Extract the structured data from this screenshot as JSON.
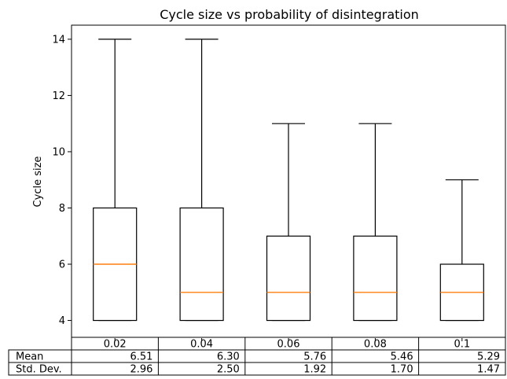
{
  "chart_data": {
    "type": "box",
    "title": "Cycle size vs probability of disintegration",
    "ylabel": "Cycle size",
    "xlabel": "",
    "ylim": [
      3.4,
      14.5
    ],
    "yticks": [
      4,
      6,
      8,
      10,
      12,
      14
    ],
    "grid": false,
    "categories": [
      "0.02",
      "0.04",
      "0.06",
      "0.08",
      "0.1"
    ],
    "boxes": [
      {
        "whislo": 4,
        "q1": 4,
        "median": 6,
        "q3": 8,
        "whishi": 14
      },
      {
        "whislo": 4,
        "q1": 4,
        "median": 5,
        "q3": 8,
        "whishi": 14
      },
      {
        "whislo": 4,
        "q1": 4,
        "median": 5,
        "q3": 7,
        "whishi": 11
      },
      {
        "whislo": 4,
        "q1": 4,
        "median": 5,
        "q3": 7,
        "whishi": 11
      },
      {
        "whislo": 4,
        "q1": 4,
        "median": 5,
        "q3": 6,
        "whishi": 9
      }
    ],
    "table": {
      "rows": [
        {
          "label": "Mean",
          "values": [
            "6.51",
            "6.30",
            "5.76",
            "5.46",
            "5.29"
          ]
        },
        {
          "label": "Std. Dev.",
          "values": [
            "2.96",
            "2.50",
            "1.92",
            "1.70",
            "1.47"
          ]
        }
      ]
    },
    "colors": {
      "box": "#000000",
      "median": "#ff7f0e"
    }
  }
}
